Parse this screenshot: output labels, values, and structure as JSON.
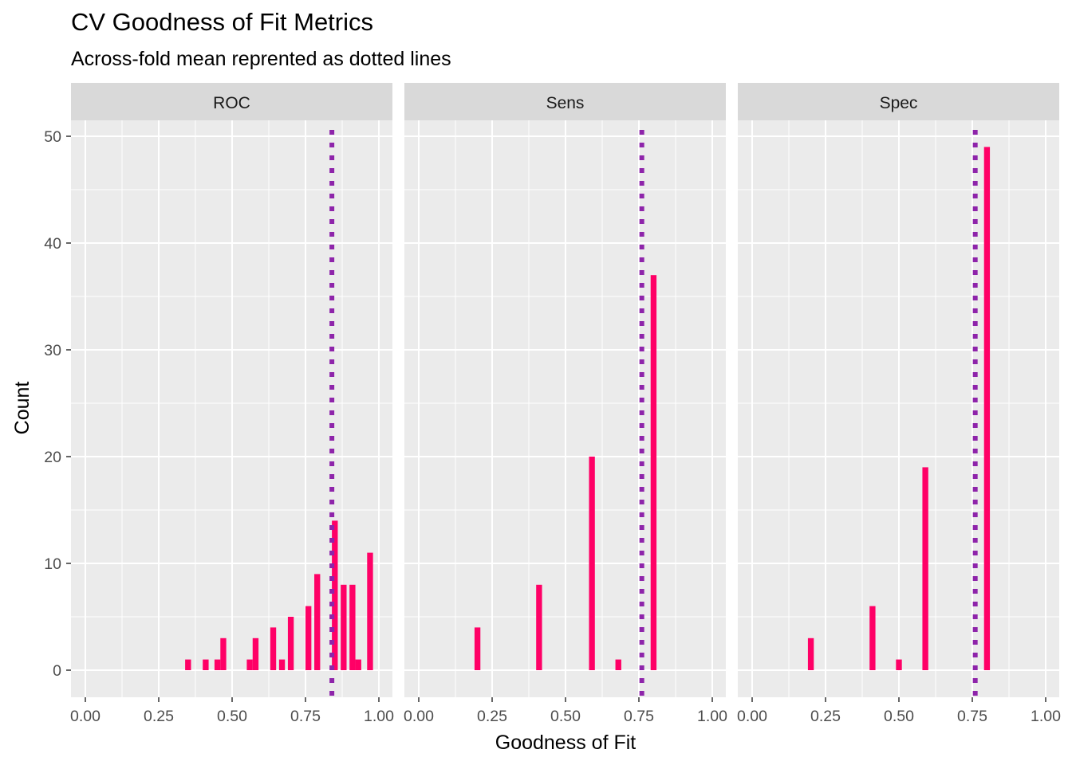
{
  "title": "CV Goodness of Fit Metrics",
  "subtitle": "Across-fold mean reprented as dotted lines",
  "colors": {
    "bar": "#FF0066",
    "mean_line": "#8E24AA",
    "panel_bg": "#EBEBEB",
    "strip_bg": "#D9D9D9",
    "grid": "#FFFFFF"
  },
  "chart_data": {
    "type": "bar",
    "subtype": "faceted histogram",
    "xlabel": "Goodness of Fit",
    "ylabel": "Count",
    "xlim": [
      0,
      1
    ],
    "ylim": [
      0,
      50
    ],
    "x_ticks": [
      "0.00",
      "0.25",
      "0.50",
      "0.75",
      "1.00"
    ],
    "y_ticks": [
      "0",
      "10",
      "20",
      "30",
      "40",
      "50"
    ],
    "grid": true,
    "bin_width": 0.02,
    "facets": [
      {
        "name": "ROC",
        "mean": 0.84,
        "bins": [
          {
            "x": 0.35,
            "count": 1
          },
          {
            "x": 0.41,
            "count": 1
          },
          {
            "x": 0.45,
            "count": 1
          },
          {
            "x": 0.47,
            "count": 3
          },
          {
            "x": 0.56,
            "count": 1
          },
          {
            "x": 0.58,
            "count": 3
          },
          {
            "x": 0.64,
            "count": 4
          },
          {
            "x": 0.67,
            "count": 1
          },
          {
            "x": 0.7,
            "count": 5
          },
          {
            "x": 0.76,
            "count": 6
          },
          {
            "x": 0.79,
            "count": 9
          },
          {
            "x": 0.85,
            "count": 14
          },
          {
            "x": 0.88,
            "count": 8
          },
          {
            "x": 0.91,
            "count": 8
          },
          {
            "x": 0.93,
            "count": 1
          },
          {
            "x": 0.97,
            "count": 11
          }
        ]
      },
      {
        "name": "Sens",
        "mean": 0.76,
        "bins": [
          {
            "x": 0.2,
            "count": 4
          },
          {
            "x": 0.41,
            "count": 8
          },
          {
            "x": 0.59,
            "count": 20
          },
          {
            "x": 0.68,
            "count": 1
          },
          {
            "x": 0.8,
            "count": 37
          }
        ]
      },
      {
        "name": "Spec",
        "mean": 0.76,
        "bins": [
          {
            "x": 0.2,
            "count": 3
          },
          {
            "x": 0.41,
            "count": 6
          },
          {
            "x": 0.5,
            "count": 1
          },
          {
            "x": 0.59,
            "count": 19
          },
          {
            "x": 0.8,
            "count": 49
          }
        ]
      }
    ]
  }
}
